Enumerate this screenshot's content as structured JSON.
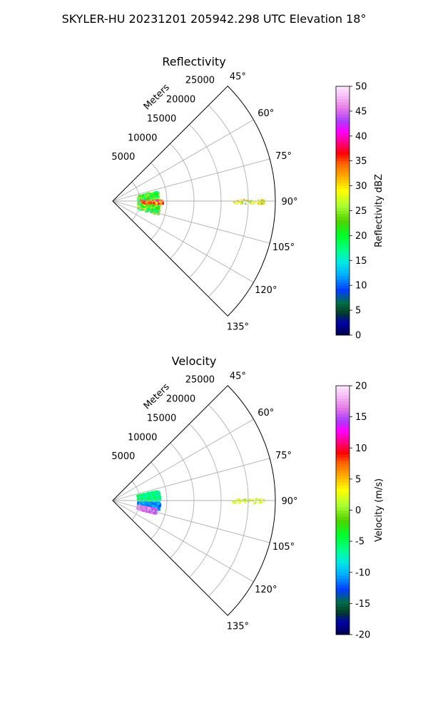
{
  "suptitle": "SKYLER-HU  20231201  205942.298 UTC Elevation 18°",
  "colors": {
    "grid": "#b0b0b0",
    "axis": "#000000"
  },
  "chart_data": [
    {
      "type": "heatmap",
      "projection": "polar-sector",
      "title": "Reflectivity",
      "range_label": "Meters",
      "azimuth_ticks": [
        "45°",
        "60°",
        "75°",
        "90°",
        "105°",
        "120°",
        "135°"
      ],
      "azimuth_range_deg": [
        45,
        135
      ],
      "range_ticks": [
        "5000",
        "10000",
        "15000",
        "20000",
        "25000"
      ],
      "range_max_m": 30000,
      "grid": true,
      "colorbar": {
        "label": "Reflectivity dBZ",
        "ticks": [
          "0",
          "5",
          "10",
          "15",
          "20",
          "25",
          "30",
          "35",
          "40",
          "45",
          "50"
        ],
        "range": [
          0,
          50
        ]
      },
      "echoes": [
        {
          "az": [
            76,
            105
          ],
          "range_m": [
            4500,
            8500
          ],
          "dbz": 22,
          "note": "main cluster"
        },
        {
          "az": [
            88,
            92
          ],
          "range_m": [
            5000,
            9000
          ],
          "dbz": 34,
          "note": "core"
        },
        {
          "az": [
            89,
            91
          ],
          "range_m": [
            22000,
            28000
          ],
          "dbz": 28,
          "note": "distant line"
        }
      ]
    },
    {
      "type": "heatmap",
      "projection": "polar-sector",
      "title": "Velocity",
      "range_label": "Meters",
      "azimuth_ticks": [
        "45°",
        "60°",
        "75°",
        "90°",
        "105°",
        "120°",
        "135°"
      ],
      "azimuth_range_deg": [
        45,
        135
      ],
      "range_ticks": [
        "5000",
        "10000",
        "15000",
        "20000",
        "25000"
      ],
      "range_max_m": 30000,
      "grid": true,
      "colorbar": {
        "label": "Velocity (m/s)",
        "ticks": [
          "-20",
          "-15",
          "-10",
          "-5",
          "0",
          "5",
          "10",
          "15",
          "20"
        ],
        "range": [
          -20,
          20
        ]
      },
      "echoes": [
        {
          "az": [
            76,
            92
          ],
          "range_m": [
            4500,
            8500
          ],
          "vel": -6,
          "note": "north half"
        },
        {
          "az": [
            92,
            100
          ],
          "range_m": [
            4500,
            8500
          ],
          "vel": -11,
          "note": "middle"
        },
        {
          "az": [
            100,
            106
          ],
          "range_m": [
            4500,
            8000
          ],
          "vel": 16,
          "note": "south lobe"
        },
        {
          "az": [
            89,
            91
          ],
          "range_m": [
            22000,
            28000
          ],
          "vel": 2,
          "note": "distant line"
        }
      ]
    }
  ]
}
